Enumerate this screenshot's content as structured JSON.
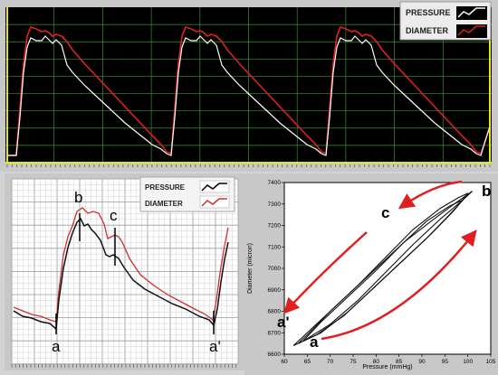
{
  "top_chart": {
    "legend": [
      {
        "name": "PRESSURE",
        "color": "#ffffff"
      },
      {
        "name": "DIAMETER",
        "color": "#e02020"
      }
    ],
    "background": "#000000",
    "grid_color": "#3f8f2f",
    "cursor_color": "#e8e800",
    "cycles": 3
  },
  "bottom_left_chart": {
    "legend": [
      {
        "name": "PRESSURE",
        "color": "#000000"
      },
      {
        "name": "DIAMETER",
        "color": "#d03030"
      }
    ],
    "annotations": {
      "a_left": "a",
      "b": "b",
      "c": "c",
      "a_right": "a'"
    }
  },
  "bottom_right_chart": {
    "type": "scatter",
    "xlabel": "Pressure (mmHg)",
    "ylabel": "Diameter (micron)",
    "xlim": [
      60,
      105
    ],
    "ylim": [
      6600,
      7400
    ],
    "x_ticks": [
      "60",
      "65",
      "70",
      "75",
      "80",
      "85",
      "90",
      "95",
      "100",
      "105"
    ],
    "y_ticks": [
      "6600",
      "6700",
      "6800",
      "6900",
      "7000",
      "7100",
      "7200",
      "7300",
      "7400"
    ],
    "annotations": {
      "a": "a",
      "a_prime": "a'",
      "b": "b",
      "c": "c"
    },
    "arrow_color": "#e02020",
    "loops": [
      {
        "x": [
          63,
          68,
          74,
          80,
          86,
          92,
          97,
          100,
          98,
          94,
          88,
          82,
          76,
          70,
          65,
          63
        ],
        "y": [
          6650,
          6700,
          6800,
          6920,
          7040,
          7160,
          7270,
          7350,
          7330,
          7280,
          7180,
          7050,
          6920,
          6800,
          6690,
          6650
        ]
      },
      {
        "x": [
          64,
          70,
          76,
          82,
          88,
          94,
          99,
          101,
          97,
          92,
          86,
          80,
          74,
          68,
          64
        ],
        "y": [
          6660,
          6740,
          6850,
          6980,
          7110,
          7230,
          7320,
          7360,
          7300,
          7220,
          7120,
          6990,
          6870,
          6750,
          6660
        ]
      },
      {
        "x": [
          62,
          67,
          73,
          79,
          85,
          91,
          96,
          99,
          96,
          91,
          85,
          79,
          72,
          66,
          62
        ],
        "y": [
          6640,
          6690,
          6780,
          6900,
          7020,
          7140,
          7250,
          7320,
          7290,
          7220,
          7100,
          6980,
          6840,
          6720,
          6640
        ]
      }
    ]
  }
}
